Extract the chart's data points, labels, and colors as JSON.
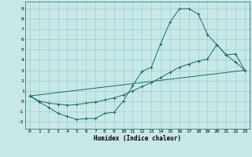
{
  "xlabel": "Humidex (Indice chaleur)",
  "background_color": "#c8e8e8",
  "grid_color": "#9ecece",
  "line_color": "#1a6b6b",
  "xlim": [
    -0.5,
    23.5
  ],
  "ylim": [
    -2.7,
    9.7
  ],
  "xticks": [
    0,
    1,
    2,
    3,
    4,
    5,
    6,
    7,
    8,
    9,
    10,
    11,
    12,
    13,
    14,
    15,
    16,
    17,
    18,
    19,
    20,
    21,
    22,
    23
  ],
  "yticks": [
    -2,
    -1,
    0,
    1,
    2,
    3,
    4,
    5,
    6,
    7,
    8,
    9
  ],
  "curve1_x": [
    0,
    1,
    2,
    3,
    4,
    5,
    6,
    7,
    8,
    9,
    10,
    11,
    12,
    13,
    14,
    15,
    16,
    17,
    18,
    19,
    20,
    21,
    22,
    23
  ],
  "curve1_y": [
    0.5,
    -0.1,
    -0.6,
    -1.2,
    -1.5,
    -1.8,
    -1.7,
    -1.7,
    -1.2,
    -1.1,
    0.0,
    1.5,
    2.9,
    3.3,
    5.6,
    7.7,
    9.0,
    9.0,
    8.5,
    6.5,
    5.5,
    4.5,
    3.8,
    3.0
  ],
  "curve2_x": [
    0,
    23
  ],
  "curve2_y": [
    0.5,
    3.0
  ],
  "curve3_x": [
    0,
    1,
    2,
    3,
    4,
    5,
    6,
    7,
    8,
    9,
    10,
    11,
    12,
    13,
    14,
    15,
    16,
    17,
    18,
    19,
    20,
    21,
    22,
    23
  ],
  "curve3_y": [
    0.5,
    0.0,
    -0.2,
    -0.3,
    -0.4,
    -0.35,
    -0.2,
    -0.1,
    0.1,
    0.3,
    0.6,
    1.0,
    1.4,
    1.8,
    2.3,
    2.8,
    3.3,
    3.6,
    3.9,
    4.1,
    5.5,
    4.5,
    4.6,
    3.0
  ]
}
